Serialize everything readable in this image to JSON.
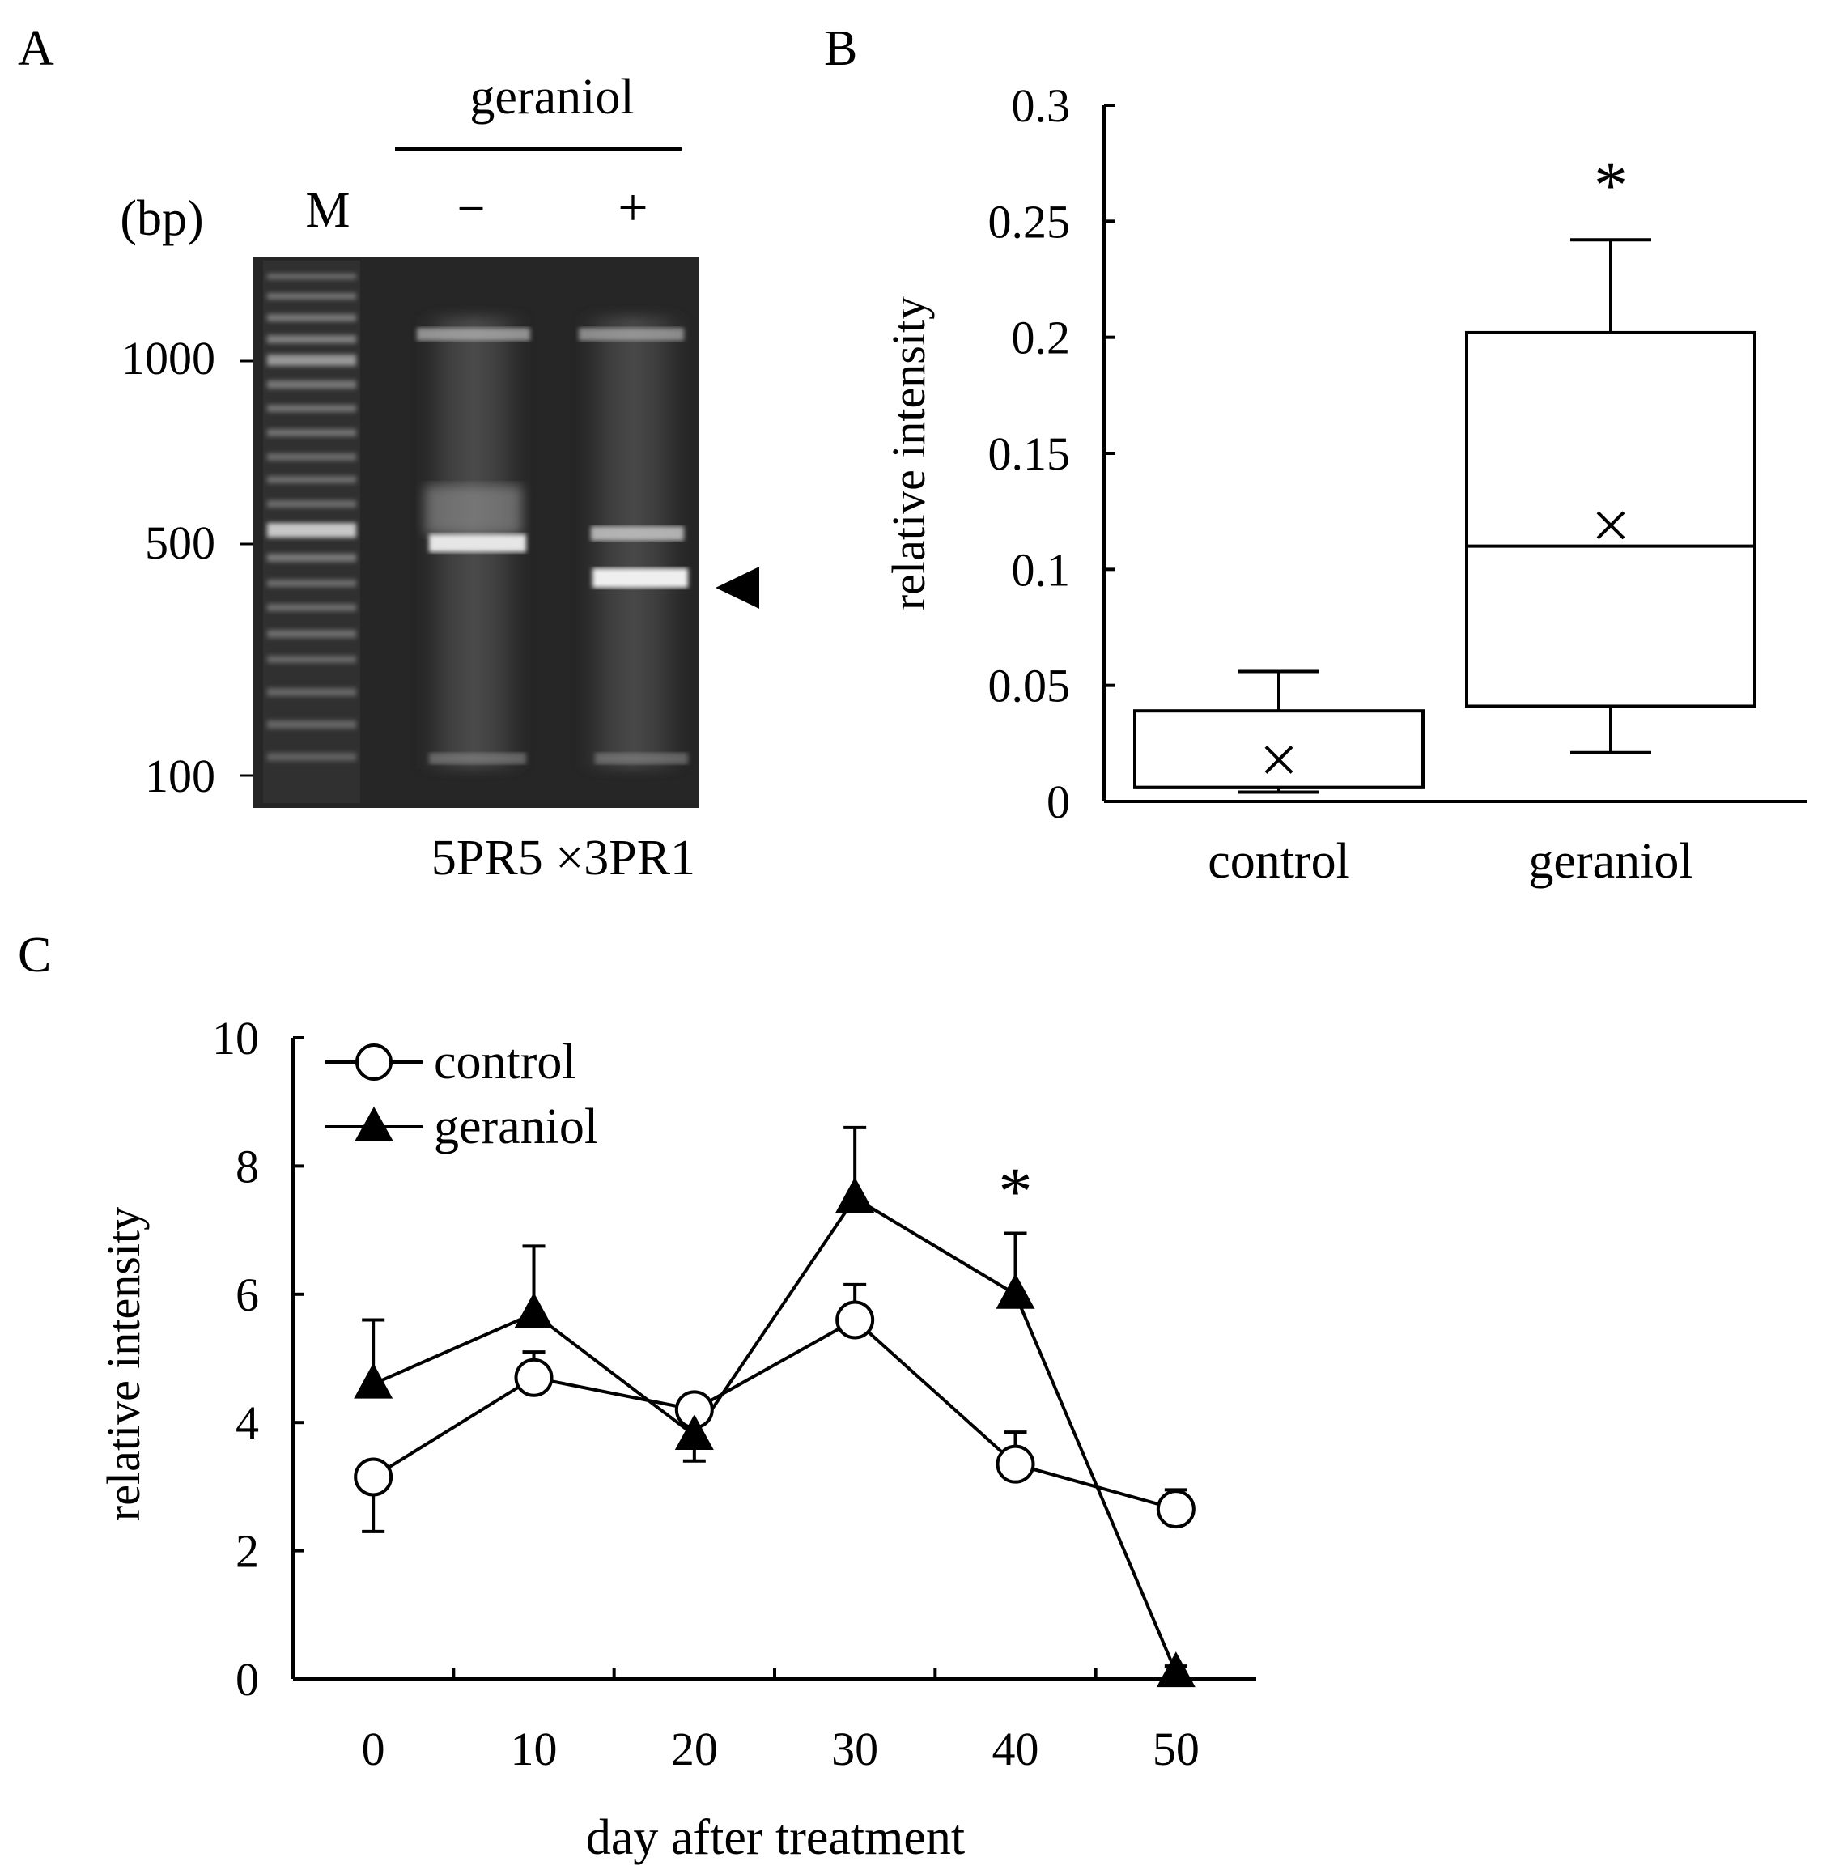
{
  "panels": {
    "A": {
      "label": "A",
      "header": "geraniol",
      "bp_label": "(bp)",
      "lanes": [
        "M",
        "−",
        "+"
      ],
      "size_markers": [
        "1000",
        "500",
        "100"
      ],
      "caption": "5PR5 ×3PR1"
    },
    "B": {
      "label": "B"
    },
    "C": {
      "label": "C"
    }
  },
  "chart_data": [
    {
      "panel": "B",
      "type": "box",
      "ylabel": "relative intensity",
      "ylim": [
        0,
        0.3
      ],
      "yticks": [
        "0",
        "0.05",
        "0.1",
        "0.15",
        "0.2",
        "0.25",
        "0.3"
      ],
      "yticks_values": [
        0,
        0.05,
        0.1,
        0.15,
        0.2,
        0.25,
        0.3
      ],
      "categories": [
        "control",
        "geraniol"
      ],
      "boxes": [
        {
          "name": "control",
          "whisker_low": 0.004,
          "q1": 0.006,
          "median": 0.006,
          "q3": 0.039,
          "whisker_high": 0.056,
          "mean": 0.018
        },
        {
          "name": "geraniol",
          "whisker_low": 0.021,
          "q1": 0.041,
          "median": 0.11,
          "q3": 0.202,
          "whisker_high": 0.242,
          "mean": 0.119
        }
      ],
      "annotations": [
        {
          "text": "*",
          "category": "geraniol"
        }
      ]
    },
    {
      "panel": "C",
      "type": "line",
      "xlabel": "day after treatment",
      "ylabel": "relative intensity",
      "xlim": [
        -5,
        55
      ],
      "ylim": [
        0,
        10
      ],
      "x": [
        0,
        10,
        20,
        30,
        40,
        50
      ],
      "xticks": [
        "0",
        "10",
        "20",
        "30",
        "40",
        "50"
      ],
      "yticks": [
        "0",
        "2",
        "4",
        "6",
        "8",
        "10"
      ],
      "series": [
        {
          "name": "control",
          "marker": "open-circle",
          "values": [
            3.15,
            4.7,
            4.2,
            5.6,
            3.35,
            2.65
          ],
          "errors": [
            0.85,
            0.4,
            0.8,
            0.55,
            0.5,
            0.3
          ]
        },
        {
          "name": "geraniol",
          "marker": "filled-triangle",
          "values": [
            4.6,
            5.7,
            3.8,
            7.5,
            6.0,
            0.1
          ],
          "errors": [
            1.0,
            1.05,
            0.35,
            1.1,
            0.95,
            0.1
          ]
        }
      ],
      "annotations": [
        {
          "text": "*",
          "x": 40
        }
      ]
    }
  ]
}
